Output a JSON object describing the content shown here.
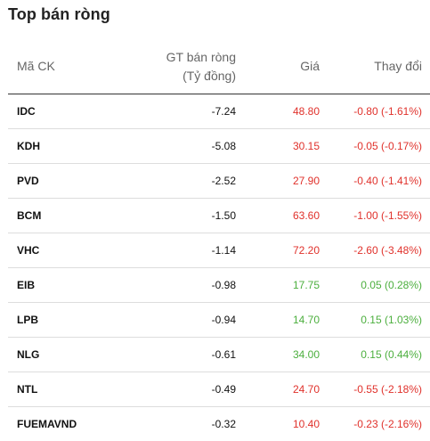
{
  "title": "Top bán ròng",
  "columns": {
    "code": "Mã CK",
    "net_line1": "GT bán ròng",
    "net_line2": "(Tỷ đồng)",
    "price": "Giá",
    "change": "Thay đổi"
  },
  "colors": {
    "negative": "#e0312b",
    "positive": "#4caf3e"
  },
  "rows": [
    {
      "code": "IDC",
      "net": "-7.24",
      "price": "48.80",
      "change": "-0.80 (-1.61%)",
      "trend": "neg"
    },
    {
      "code": "KDH",
      "net": "-5.08",
      "price": "30.15",
      "change": "-0.05 (-0.17%)",
      "trend": "neg"
    },
    {
      "code": "PVD",
      "net": "-2.52",
      "price": "27.90",
      "change": "-0.40 (-1.41%)",
      "trend": "neg"
    },
    {
      "code": "BCM",
      "net": "-1.50",
      "price": "63.60",
      "change": "-1.00 (-1.55%)",
      "trend": "neg"
    },
    {
      "code": "VHC",
      "net": "-1.14",
      "price": "72.20",
      "change": "-2.60 (-3.48%)",
      "trend": "neg"
    },
    {
      "code": "EIB",
      "net": "-0.98",
      "price": "17.75",
      "change": "0.05 (0.28%)",
      "trend": "pos"
    },
    {
      "code": "LPB",
      "net": "-0.94",
      "price": "14.70",
      "change": "0.15 (1.03%)",
      "trend": "pos"
    },
    {
      "code": "NLG",
      "net": "-0.61",
      "price": "34.00",
      "change": "0.15 (0.44%)",
      "trend": "pos"
    },
    {
      "code": "NTL",
      "net": "-0.49",
      "price": "24.70",
      "change": "-0.55 (-2.18%)",
      "trend": "neg"
    },
    {
      "code": "FUEMAVND",
      "net": "-0.32",
      "price": "10.40",
      "change": "-0.23 (-2.16%)",
      "trend": "neg"
    }
  ]
}
